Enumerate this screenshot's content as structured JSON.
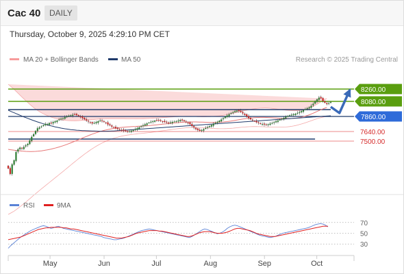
{
  "header": {
    "instrument": "Cac 40",
    "period": "DAILY"
  },
  "timestamp": "Thursday, October 9, 2025 4:29:10 PM CET",
  "legend": {
    "bollinger": "MA 20 + Bollinger Bands",
    "ma50": "MA 50",
    "credit": "Research © 2025 Trading Central"
  },
  "indicator_legend": {
    "rsi": "RSI",
    "ma9": "9MA"
  },
  "colors": {
    "green": "#5a9e0f",
    "blue": "#2e6bd9",
    "red": "#e23b3b",
    "navy": "#1f3a6b",
    "band": "#f9cccc",
    "rsi": "#5b82d6",
    "ma9": "#e02020"
  },
  "chart_data": [
    {
      "type": "candlestick",
      "x": {
        "start": "2025-04-07",
        "end": "2025-10-09",
        "tick_labels": [
          "May",
          "Jun",
          "Jul",
          "Aug",
          "Sep",
          "Oct"
        ],
        "tick_dates": [
          "2025-05-01",
          "2025-06-01",
          "2025-07-01",
          "2025-08-01",
          "2025-09-01",
          "2025-10-01"
        ]
      },
      "ylim": [
        6750,
        8550
      ],
      "levels": [
        {
          "value": 8260,
          "label": "8260.00",
          "style": "green-tag"
        },
        {
          "value": 8080,
          "label": "8080.00",
          "style": "green-tag"
        },
        {
          "value": 7860,
          "label": "7860.00",
          "style": "blue-tag"
        },
        {
          "value": 7640,
          "label": "7640.00",
          "style": "red-text"
        },
        {
          "value": 7500,
          "label": "7500.00",
          "style": "red-text"
        }
      ],
      "trend_lines": [
        {
          "from": [
            "2025-04-07",
            7960
          ],
          "to": [
            "2025-10-09",
            7960
          ],
          "color": "navy"
        },
        {
          "from": [
            "2025-04-07",
            7530
          ],
          "to": [
            "2025-09-30",
            7530
          ],
          "color": "navy"
        }
      ],
      "forecast_arrow": {
        "points": [
          [
            "2025-10-09",
            8000
          ],
          [
            "2025-10-14",
            7910
          ],
          [
            "2025-10-20",
            8250
          ]
        ]
      },
      "close": [
        7100,
        7020,
        7160,
        7220,
        7340,
        7380,
        7405,
        7392,
        7415,
        7438,
        7460,
        7510,
        7562,
        7600,
        7648,
        7688,
        7700,
        7715,
        7733,
        7752,
        7748,
        7763,
        7758,
        7778,
        7790,
        7800,
        7815,
        7828,
        7835,
        7850,
        7858,
        7872,
        7878,
        7885,
        7893,
        7880,
        7865,
        7850,
        7835,
        7818,
        7800,
        7785,
        7770,
        7758,
        7765,
        7778,
        7790,
        7800,
        7792,
        7780,
        7765,
        7742,
        7730,
        7712,
        7700,
        7688,
        7678,
        7668,
        7660,
        7655,
        7648,
        7640,
        7645,
        7652,
        7660,
        7672,
        7688,
        7702,
        7718,
        7730,
        7745,
        7758,
        7770,
        7782,
        7790,
        7798,
        7805,
        7808,
        7795,
        7785,
        7778,
        7772,
        7768,
        7773,
        7779,
        7785,
        7792,
        7800,
        7808,
        7802,
        7790,
        7778,
        7765,
        7745,
        7720,
        7700,
        7675,
        7662,
        7650,
        7660,
        7675,
        7690,
        7705,
        7718,
        7735,
        7752,
        7765,
        7782,
        7798,
        7815,
        7835,
        7855,
        7875,
        7893,
        7910,
        7925,
        7938,
        7945,
        7940,
        7925,
        7905,
        7882,
        7860,
        7838,
        7818,
        7805,
        7790,
        7775,
        7765,
        7755,
        7748,
        7742,
        7738,
        7746,
        7755,
        7765,
        7778,
        7790,
        7800,
        7812,
        7826,
        7840,
        7855,
        7866,
        7878,
        7885,
        7892,
        7900,
        7912,
        7925,
        7938,
        7952,
        7965,
        7980,
        7995,
        8015,
        8045,
        8078,
        8110,
        8135,
        8125,
        8085,
        8060,
        8040,
        8055,
        8070
      ],
      "ma20": [
        7380,
        7375,
        7371,
        7367,
        7363,
        7360,
        7357,
        7354,
        7352,
        7350,
        7349,
        7348,
        7348,
        7349,
        7350,
        7352,
        7355,
        7358,
        7362,
        7367,
        7372,
        7378,
        7384,
        7391,
        7398,
        7406,
        7414,
        7423,
        7432,
        7442,
        7452,
        7463,
        7474,
        7486,
        7497,
        7509,
        7521,
        7533,
        7545,
        7557,
        7568,
        7580,
        7591,
        7602,
        7612,
        7622,
        7631,
        7640,
        7648,
        7656,
        7663,
        7669,
        7675,
        7680,
        7685,
        7689,
        7693,
        7697,
        7700,
        7703,
        7705,
        7707,
        7709,
        7711,
        7713,
        7714,
        7716,
        7718,
        7719,
        7721,
        7723,
        7725,
        7727,
        7729,
        7732,
        7735,
        7738,
        7741,
        7744,
        7747,
        7750,
        7753,
        7756,
        7759,
        7762,
        7765,
        7768,
        7770,
        7773,
        7775,
        7776,
        7778,
        7779,
        7780,
        7780,
        7780,
        7780,
        7779,
        7778,
        7777,
        7776,
        7775,
        7774,
        7773,
        7773,
        7773,
        7773,
        7774,
        7775,
        7777,
        7779,
        7782,
        7785,
        7789,
        7793,
        7797,
        7802,
        7807,
        7812,
        7817,
        7822,
        7826,
        7830,
        7834,
        7837,
        7840,
        7842,
        7844,
        7845,
        7846,
        7846,
        7846,
        7845,
        7844,
        7843,
        7841,
        7839,
        7837,
        7835,
        7833,
        7831,
        7830,
        7829,
        7829,
        7829,
        7830,
        7832,
        7835,
        7839,
        7844,
        7850,
        7857,
        7865,
        7874,
        7884,
        7895,
        7907,
        7920,
        7933,
        7946,
        7958,
        7970,
        7981,
        7991
      ],
      "ma50": [
        7950,
        7938,
        7926,
        7914,
        7902,
        7890,
        7878,
        7866,
        7854,
        7843,
        7832,
        7821,
        7810,
        7800,
        7790,
        7780,
        7771,
        7762,
        7753,
        7745,
        7737,
        7729,
        7722,
        7715,
        7708,
        7702,
        7696,
        7690,
        7685,
        7680,
        7676,
        7672,
        7668,
        7665,
        7662,
        7659,
        7657,
        7655,
        7653,
        7652,
        7651,
        7650,
        7649,
        7648,
        7647,
        7646,
        7645,
        7644,
        7644,
        7644,
        7644,
        7645,
        7646,
        7647,
        7648,
        7650,
        7652,
        7654,
        7656,
        7658,
        7660,
        7662,
        7664,
        7666,
        7668,
        7670,
        7672,
        7674,
        7676,
        7678,
        7680,
        7682,
        7684,
        7686,
        7688,
        7690,
        7692,
        7694,
        7696,
        7698,
        7700,
        7702,
        7704,
        7706,
        7708,
        7710,
        7712,
        7714,
        7716,
        7718,
        7720,
        7722,
        7724,
        7726,
        7728,
        7730,
        7732,
        7734,
        7736,
        7738,
        7740,
        7742,
        7744,
        7746,
        7748,
        7750,
        7752,
        7754,
        7756,
        7758,
        7760,
        7762,
        7764,
        7766,
        7768,
        7770,
        7772,
        7774,
        7776,
        7778,
        7780,
        7782,
        7784,
        7786,
        7788,
        7790,
        7792,
        7794,
        7796,
        7798,
        7800,
        7802,
        7804,
        7806,
        7808,
        7810,
        7812,
        7814,
        7816,
        7818,
        7820,
        7822,
        7824,
        7826,
        7828,
        7830,
        7832,
        7834,
        7836,
        7838,
        7840,
        7842,
        7844,
        7846,
        7848,
        7850,
        7852,
        7854,
        7856,
        7858,
        7860,
        7862,
        7864,
        7866,
        7868,
        7870
      ],
      "band_half_width": [
        950,
        930,
        910,
        890,
        865,
        840,
        815,
        790,
        765,
        740,
        715,
        690,
        665,
        640,
        618,
        596,
        575,
        555,
        536,
        518,
        500,
        483,
        466,
        450,
        434,
        419,
        404,
        390,
        376,
        362,
        349,
        336,
        324,
        312,
        300,
        289,
        278,
        268,
        258,
        248,
        239,
        230,
        221,
        213,
        205,
        197,
        190,
        183,
        176,
        170,
        164,
        158,
        153,
        148,
        143,
        139,
        135,
        131,
        128,
        125,
        122,
        119,
        117,
        115,
        113,
        111,
        109,
        108,
        107,
        106,
        105,
        104,
        103,
        102,
        101,
        100,
        99,
        98,
        97,
        96,
        95,
        94,
        93,
        92,
        91,
        90,
        89,
        88,
        87,
        86,
        85,
        84,
        83,
        82,
        81,
        80,
        79,
        78,
        78,
        78,
        79,
        80,
        82,
        84,
        86,
        88,
        90,
        92,
        94,
        96,
        98,
        100,
        102,
        104,
        106,
        108,
        110,
        112,
        114,
        116,
        118,
        120,
        122,
        124,
        126,
        128,
        130,
        132,
        134,
        135,
        136,
        137,
        138,
        138,
        137,
        136,
        135,
        133,
        131,
        129,
        127,
        125,
        123,
        120,
        117,
        114,
        111,
        108,
        105,
        102,
        100,
        98,
        97,
        96,
        96,
        97,
        99,
        102,
        106,
        110,
        115,
        120,
        125,
        130,
        134
      ]
    },
    {
      "type": "line",
      "series_names": [
        "RSI",
        "9MA"
      ],
      "ylim": [
        15,
        85
      ],
      "reference_lines": [
        70,
        50,
        30
      ],
      "tick_labels": [
        "70",
        "50",
        "30"
      ],
      "rsi": [
        22,
        27,
        31,
        35,
        39,
        43,
        46,
        49,
        52,
        55,
        57,
        59,
        61,
        63,
        64,
        63,
        61,
        59,
        60,
        62,
        63,
        61,
        59,
        58,
        57,
        56,
        55,
        54,
        53,
        52,
        51,
        50,
        49,
        48,
        47,
        46,
        45,
        44,
        42,
        41,
        40,
        39,
        38,
        38,
        39,
        40,
        41,
        43,
        45,
        47,
        49,
        51,
        53,
        55,
        56,
        57,
        58,
        57,
        56,
        55,
        54,
        53,
        52,
        51,
        50,
        49,
        48,
        47,
        46,
        45,
        44,
        43,
        42,
        44,
        47,
        50,
        53,
        56,
        58,
        57,
        55,
        53,
        51,
        49,
        50,
        52,
        55,
        59,
        62,
        64,
        65,
        64,
        62,
        60,
        58,
        56,
        54,
        52,
        50,
        48,
        46,
        45,
        44,
        43,
        42,
        43,
        44,
        46,
        48,
        50,
        51,
        52,
        53,
        54,
        55,
        56,
        57,
        58,
        59,
        60,
        62,
        64,
        66,
        67,
        68,
        67,
        65,
        62
      ],
      "ma9": [
        38,
        39,
        40,
        41,
        42,
        43,
        45,
        47,
        49,
        51,
        53,
        55,
        57,
        58,
        59,
        60,
        60,
        61,
        61,
        61,
        61,
        61,
        60,
        60,
        59,
        58,
        58,
        57,
        56,
        55,
        54,
        53,
        52,
        51,
        50,
        49,
        48,
        47,
        46,
        45,
        44,
        43,
        42,
        41,
        41,
        41,
        42,
        43,
        44,
        46,
        48,
        50,
        51,
        52,
        53,
        54,
        55,
        55,
        55,
        55,
        54,
        54,
        53,
        52,
        51,
        50,
        49,
        48,
        47,
        46,
        45,
        44,
        44,
        45,
        47,
        49,
        51,
        52,
        53,
        53,
        53,
        52,
        51,
        50,
        50,
        50,
        51,
        52,
        54,
        56,
        58,
        59,
        59,
        58,
        57,
        56,
        55,
        53,
        51,
        49,
        48,
        47,
        46,
        45,
        44,
        44,
        44,
        45,
        46,
        47,
        48,
        49,
        50,
        51,
        52,
        53,
        54,
        55,
        56,
        57,
        58,
        59,
        60,
        61,
        62,
        63,
        63,
        63
      ]
    }
  ]
}
